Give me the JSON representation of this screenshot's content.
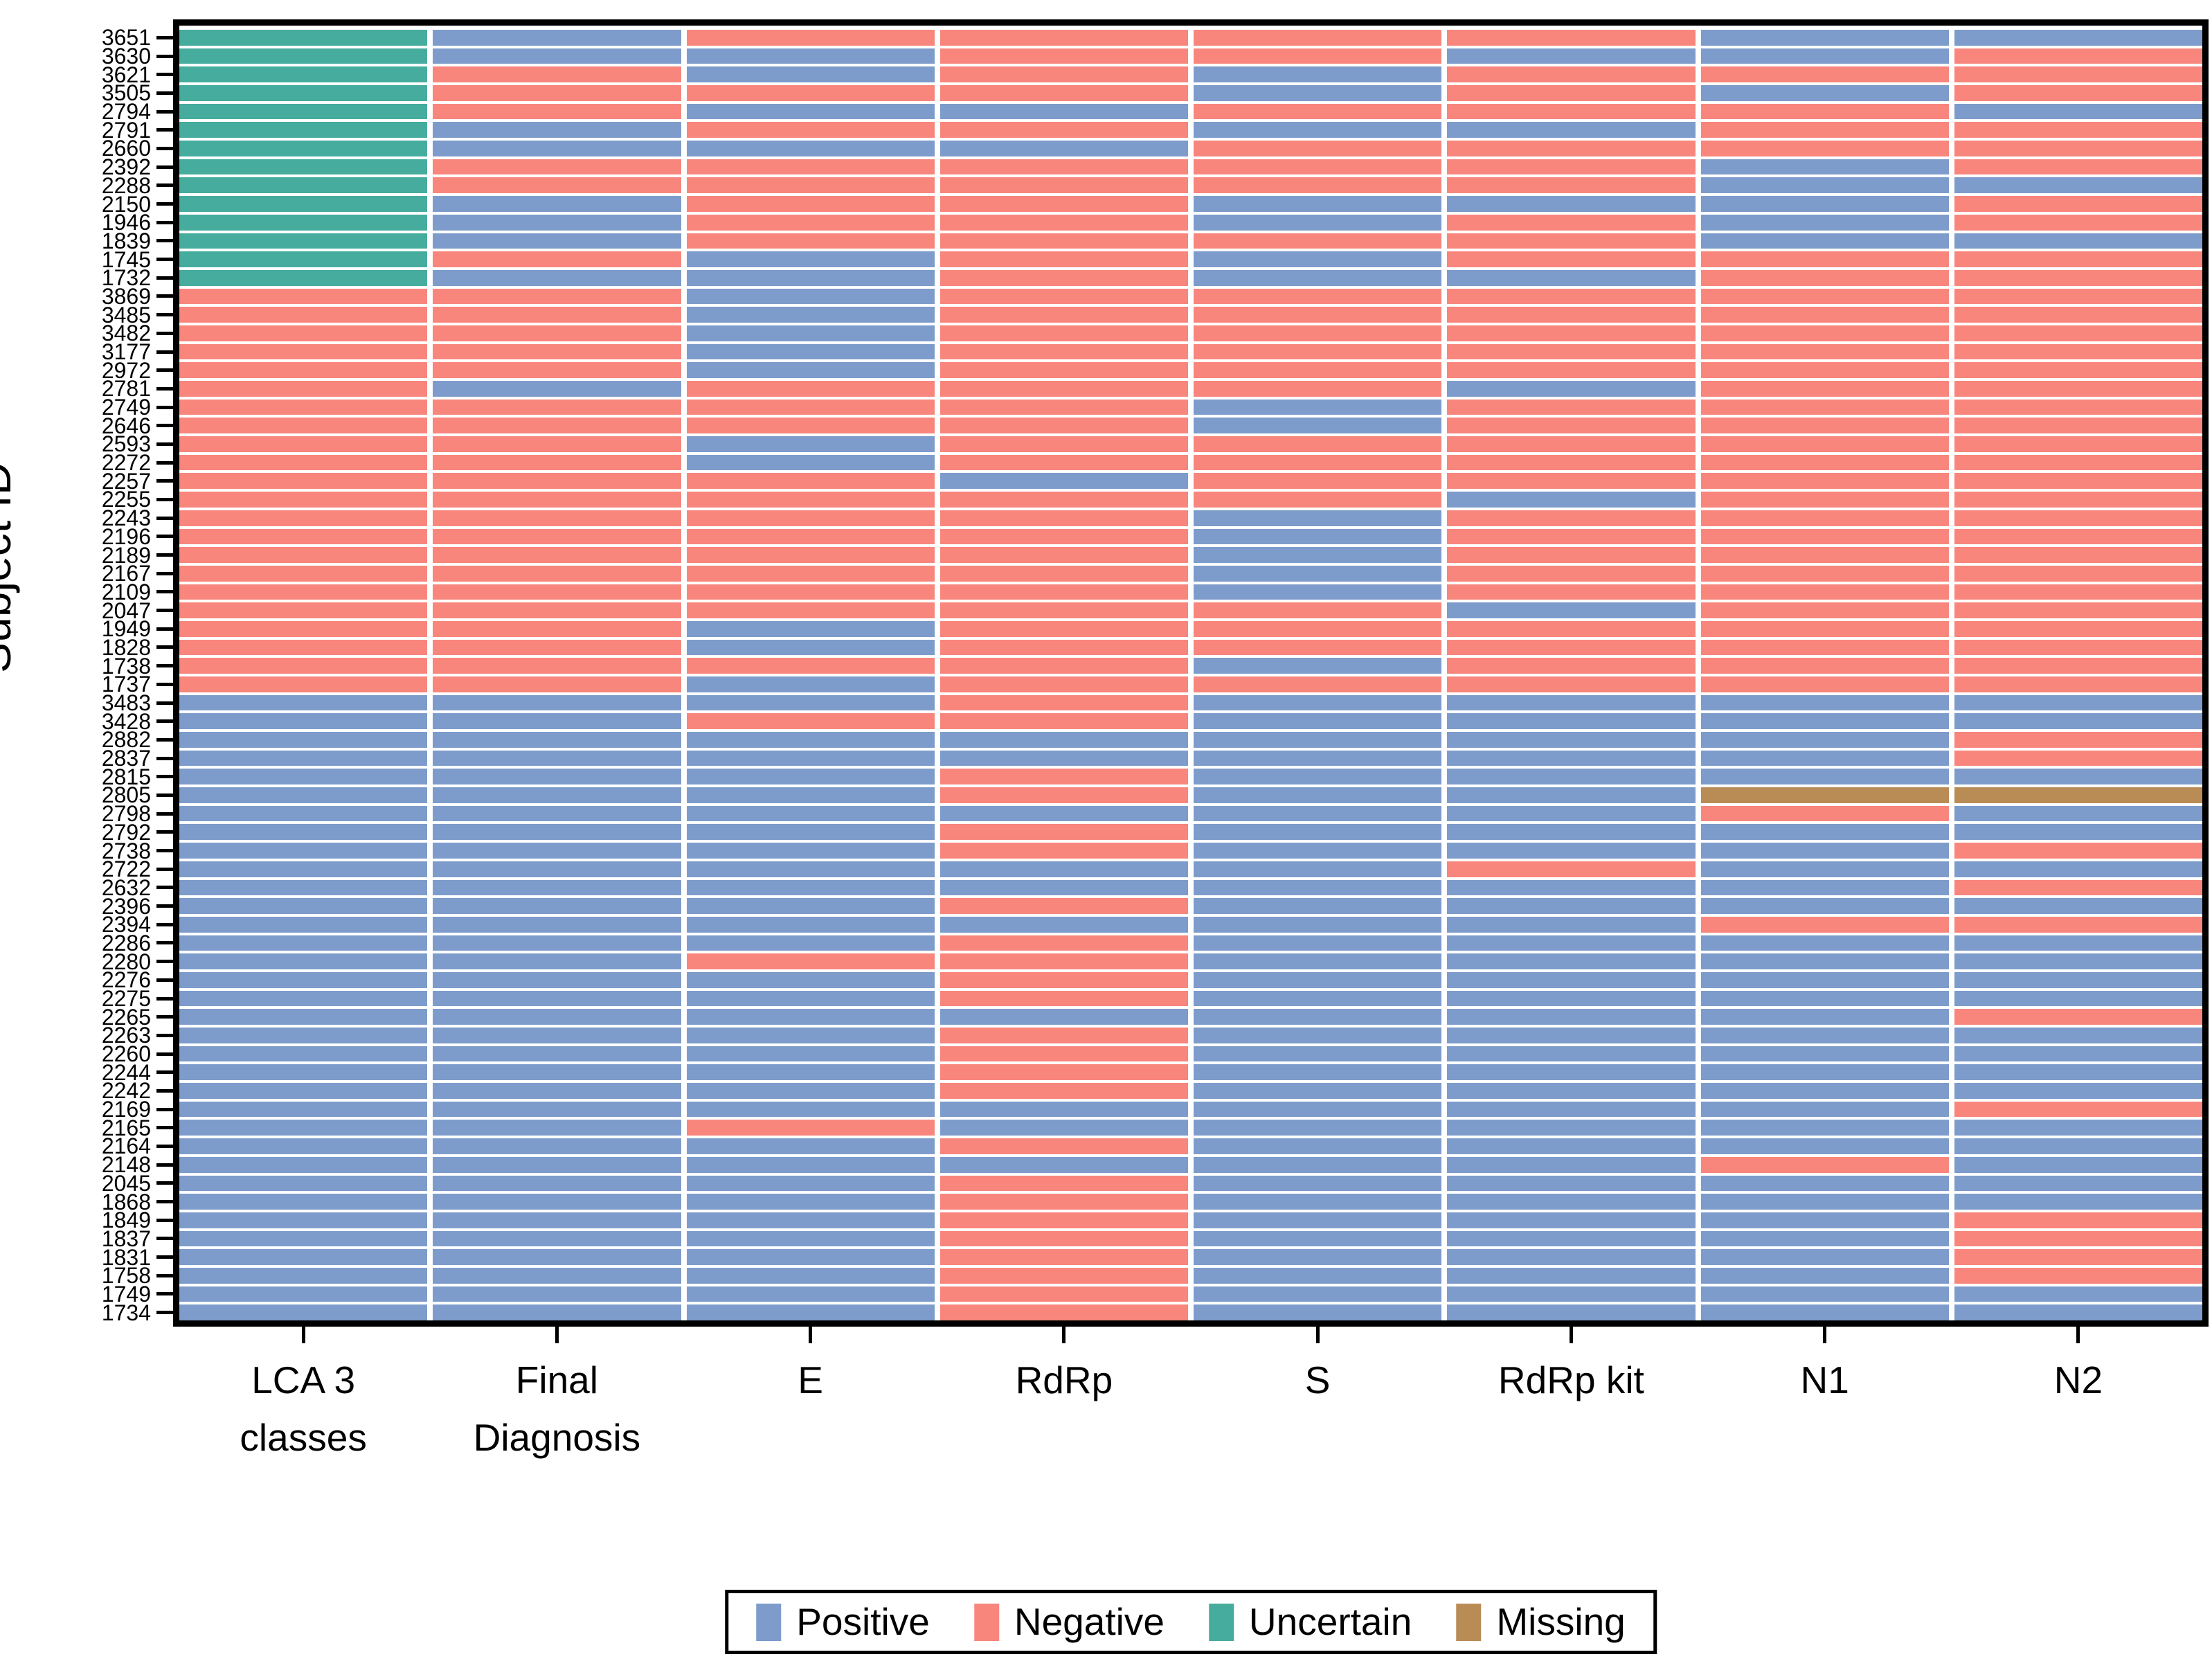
{
  "page": {
    "background": "#ffffff"
  },
  "y_axis": {
    "title": "Subject ID"
  },
  "x_axis": {
    "labels": [
      "LCA 3\nclasses",
      "Final\nDiagnosis",
      "E",
      "RdRp",
      "S",
      "RdRp kit",
      "N1",
      "N2"
    ]
  },
  "legend": {
    "position": "bottom",
    "items": [
      {
        "label": "Positive",
        "code": "P",
        "color": "#7D9CCC"
      },
      {
        "label": "Negative",
        "code": "N",
        "color": "#F8867D"
      },
      {
        "label": "Uncertain",
        "code": "U",
        "color": "#45AC9E"
      },
      {
        "label": "Missing",
        "code": "M",
        "color": "#BA8C55"
      }
    ]
  },
  "chart_data": {
    "type": "heatmap",
    "title": "",
    "xlabel": "",
    "ylabel": "Subject ID",
    "grid": false,
    "legend_position": "bottom",
    "columns": [
      "LCA 3 classes",
      "Final Diagnosis",
      "E",
      "RdRp",
      "S",
      "RdRp kit",
      "N1",
      "N2"
    ],
    "value_codes": {
      "P": "Positive",
      "N": "Negative",
      "U": "Uncertain",
      "M": "Missing"
    },
    "colors": {
      "Positive": "#7D9CCC",
      "Negative": "#F8867D",
      "Uncertain": "#45AC9E",
      "Missing": "#BA8C55"
    },
    "rows": [
      {
        "id": "3651",
        "values": "UPNNNNPP"
      },
      {
        "id": "3630",
        "values": "UPPNNPPN"
      },
      {
        "id": "3621",
        "values": "UNPNPNNN"
      },
      {
        "id": "3505",
        "values": "UNNNPNPN"
      },
      {
        "id": "2794",
        "values": "UNPPNNNP"
      },
      {
        "id": "2791",
        "values": "UPNNPPNN"
      },
      {
        "id": "2660",
        "values": "UPPPNNNN"
      },
      {
        "id": "2392",
        "values": "UNNNNNPN"
      },
      {
        "id": "2288",
        "values": "UNNNNNPP"
      },
      {
        "id": "2150",
        "values": "UPNNPPPN"
      },
      {
        "id": "1946",
        "values": "UPNNPNPN"
      },
      {
        "id": "1839",
        "values": "UPNNNNPP"
      },
      {
        "id": "1745",
        "values": "UNPNPNNN"
      },
      {
        "id": "1732",
        "values": "UPPNPPNN"
      },
      {
        "id": "3869",
        "values": "NNPNNNNN"
      },
      {
        "id": "3485",
        "values": "NNPNNNNN"
      },
      {
        "id": "3482",
        "values": "NNPNNNNN"
      },
      {
        "id": "3177",
        "values": "NNPNNNNN"
      },
      {
        "id": "2972",
        "values": "NNPNNNNN"
      },
      {
        "id": "2781",
        "values": "NPNNNPNN"
      },
      {
        "id": "2749",
        "values": "NNNNPNNN"
      },
      {
        "id": "2646",
        "values": "NNNNPNNN"
      },
      {
        "id": "2593",
        "values": "NNPNNNNN"
      },
      {
        "id": "2272",
        "values": "NNPNNNNN"
      },
      {
        "id": "2257",
        "values": "NNNPNNNN"
      },
      {
        "id": "2255",
        "values": "NNNNNPNN"
      },
      {
        "id": "2243",
        "values": "NNNNPNNN"
      },
      {
        "id": "2196",
        "values": "NNNNPNNN"
      },
      {
        "id": "2189",
        "values": "NNNNPNNN"
      },
      {
        "id": "2167",
        "values": "NNNNPNNN"
      },
      {
        "id": "2109",
        "values": "NNNNPNNN"
      },
      {
        "id": "2047",
        "values": "NNNNNPNN"
      },
      {
        "id": "1949",
        "values": "NNPNNNNN"
      },
      {
        "id": "1828",
        "values": "NNPNNNNN"
      },
      {
        "id": "1738",
        "values": "NNNNPNNN"
      },
      {
        "id": "1737",
        "values": "NNPNNNNN"
      },
      {
        "id": "3483",
        "values": "PPPNPPPP"
      },
      {
        "id": "3428",
        "values": "PPNNPPPP"
      },
      {
        "id": "2882",
        "values": "PPPPPPPN"
      },
      {
        "id": "2837",
        "values": "PPPPPPPN"
      },
      {
        "id": "2815",
        "values": "PPPNPPPP"
      },
      {
        "id": "2805",
        "values": "PPPNPPMM"
      },
      {
        "id": "2798",
        "values": "PPPPPPNP"
      },
      {
        "id": "2792",
        "values": "PPPNPPPP"
      },
      {
        "id": "2738",
        "values": "PPPNPPPN"
      },
      {
        "id": "2722",
        "values": "PPPPPNPP"
      },
      {
        "id": "2632",
        "values": "PPPPPPPN"
      },
      {
        "id": "2396",
        "values": "PPPNPPPP"
      },
      {
        "id": "2394",
        "values": "PPPPPPNN"
      },
      {
        "id": "2286",
        "values": "PPPNPPPP"
      },
      {
        "id": "2280",
        "values": "PPNNPPPP"
      },
      {
        "id": "2276",
        "values": "PPPNPPPP"
      },
      {
        "id": "2275",
        "values": "PPPNPPPP"
      },
      {
        "id": "2265",
        "values": "PPPPPPPN"
      },
      {
        "id": "2263",
        "values": "PPPNPPPP"
      },
      {
        "id": "2260",
        "values": "PPPNPPPP"
      },
      {
        "id": "2244",
        "values": "PPPNPPPP"
      },
      {
        "id": "2242",
        "values": "PPPNPPPP"
      },
      {
        "id": "2169",
        "values": "PPPPPPPN"
      },
      {
        "id": "2165",
        "values": "PPNPPPPP"
      },
      {
        "id": "2164",
        "values": "PPPNPPPP"
      },
      {
        "id": "2148",
        "values": "PPPPPPNP"
      },
      {
        "id": "2045",
        "values": "PPPNPPPP"
      },
      {
        "id": "1868",
        "values": "PPPNPPPP"
      },
      {
        "id": "1849",
        "values": "PPPNPPPN"
      },
      {
        "id": "1837",
        "values": "PPPNPPPN"
      },
      {
        "id": "1831",
        "values": "PPPNPPPN"
      },
      {
        "id": "1758",
        "values": "PPPNPPPN"
      },
      {
        "id": "1749",
        "values": "PPPNPPPP"
      },
      {
        "id": "1734",
        "values": "PPPNPPPP"
      }
    ]
  }
}
